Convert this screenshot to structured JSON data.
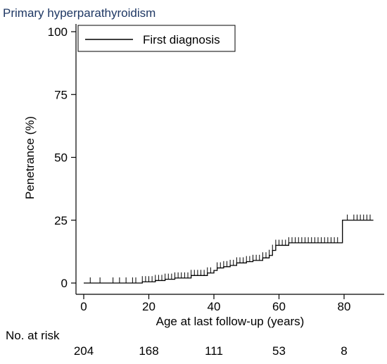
{
  "chart_data": {
    "type": "line",
    "title": "Primary hyperparathyroidism",
    "xlabel": "Age at last follow-up (years)",
    "ylabel": "Penetrance (%)",
    "xlim": [
      0,
      90
    ],
    "ylim": [
      0,
      100
    ],
    "x_ticks": [
      0,
      20,
      40,
      60,
      80
    ],
    "y_ticks": [
      0,
      25,
      50,
      75,
      100
    ],
    "grid": false,
    "legend_position": "top-left",
    "series": [
      {
        "name": "First diagnosis",
        "color": "#000000",
        "steps": [
          {
            "x": 0,
            "y": 0
          },
          {
            "x": 18,
            "y": 0.5
          },
          {
            "x": 22,
            "y": 1
          },
          {
            "x": 25,
            "y": 1.5
          },
          {
            "x": 28,
            "y": 2
          },
          {
            "x": 33,
            "y": 3
          },
          {
            "x": 38,
            "y": 4
          },
          {
            "x": 40,
            "y": 5
          },
          {
            "x": 41,
            "y": 6
          },
          {
            "x": 43,
            "y": 6.5
          },
          {
            "x": 45,
            "y": 7
          },
          {
            "x": 47,
            "y": 8
          },
          {
            "x": 50,
            "y": 8.5
          },
          {
            "x": 52,
            "y": 9
          },
          {
            "x": 55,
            "y": 10
          },
          {
            "x": 57,
            "y": 11
          },
          {
            "x": 58,
            "y": 13
          },
          {
            "x": 59,
            "y": 15
          },
          {
            "x": 63,
            "y": 16
          },
          {
            "x": 79.5,
            "y": 25
          },
          {
            "x": 89,
            "y": 25
          }
        ],
        "censor_marks": [
          2,
          5,
          9,
          11,
          13,
          15,
          16,
          18,
          19,
          20,
          21,
          22,
          23,
          24,
          25,
          26,
          27,
          28,
          29,
          30,
          31,
          32,
          33,
          34,
          35,
          36,
          37,
          38,
          39,
          41,
          42,
          43,
          44,
          45,
          46,
          47,
          48,
          49,
          50,
          51,
          52,
          53,
          54,
          55,
          56,
          57,
          58,
          59,
          60,
          61,
          62,
          63,
          64,
          65,
          66,
          67,
          68,
          69,
          70,
          71,
          72,
          73,
          74,
          75,
          76,
          77,
          78,
          81,
          83,
          84,
          85,
          86,
          87,
          88
        ]
      }
    ],
    "risk_table": {
      "label": "No. at risk",
      "x": [
        0,
        20,
        40,
        60,
        80
      ],
      "counts": [
        "204",
        "168",
        "111",
        "53",
        "8"
      ]
    }
  }
}
